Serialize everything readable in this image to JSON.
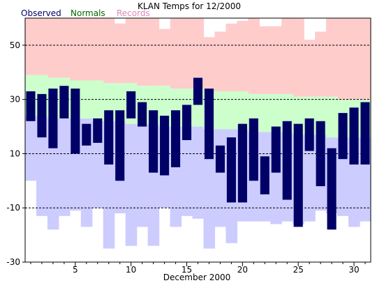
{
  "chart_data": {
    "type": "bar",
    "title": "KLAN Temps for 12/2000",
    "xlabel": "December 2000",
    "ylabel": "",
    "ylim": [
      -30,
      60
    ],
    "yticks": [
      -30,
      -10,
      10,
      30,
      50
    ],
    "xticks": [
      5,
      10,
      15,
      20,
      25,
      30
    ],
    "grid": "dashed horizontal at labeled y ticks",
    "legend": [
      {
        "name": "Observed",
        "color": "#000066"
      },
      {
        "name": "Normals",
        "color": "#006600"
      },
      {
        "name": "Records",
        "color": "#dd88bb"
      }
    ],
    "colors": {
      "observed": "#000066",
      "normals_fill": "#ccffcc",
      "records_high_fill": "#ffcccc",
      "records_low_fill": "#ccccff"
    },
    "days": [
      1,
      2,
      3,
      4,
      5,
      6,
      7,
      8,
      9,
      10,
      11,
      12,
      13,
      14,
      15,
      16,
      17,
      18,
      19,
      20,
      21,
      22,
      23,
      24,
      25,
      26,
      27,
      28,
      29,
      30,
      31
    ],
    "series": [
      {
        "name": "Observed",
        "high": [
          33,
          32,
          34,
          35,
          34,
          21,
          23,
          26,
          26,
          33,
          29,
          26,
          24,
          26,
          28,
          38,
          34,
          13,
          16,
          21,
          23,
          9,
          20,
          22,
          21,
          23,
          22,
          12,
          25,
          27,
          29
        ],
        "low": [
          22,
          16,
          12,
          23,
          10,
          13,
          14,
          6,
          0,
          23,
          20,
          3,
          2,
          5,
          15,
          28,
          8,
          3,
          -8,
          -8,
          0,
          -5,
          3,
          -7,
          -17,
          11,
          -2,
          -18,
          8,
          6,
          6
        ]
      },
      {
        "name": "Normals",
        "high": [
          39,
          39,
          38,
          38,
          37,
          37,
          37,
          36,
          36,
          36,
          35,
          35,
          35,
          34,
          34,
          34,
          33,
          33,
          33,
          33,
          32,
          32,
          32,
          32,
          31,
          31,
          31,
          31,
          30,
          30,
          30
        ],
        "low": [
          24,
          24,
          23,
          23,
          23,
          23,
          22,
          22,
          22,
          21,
          21,
          21,
          20,
          20,
          20,
          20,
          19,
          19,
          19,
          19,
          18,
          18,
          18,
          18,
          17,
          17,
          17,
          16,
          16,
          16,
          16
        ]
      },
      {
        "name": "Records",
        "high": [
          65,
          66,
          66,
          64,
          69,
          65,
          63,
          65,
          58,
          63,
          62,
          62,
          56,
          61,
          64,
          61,
          53,
          55,
          58,
          59,
          60,
          57,
          57,
          62,
          65,
          52,
          55,
          62,
          62,
          60,
          70
        ],
        "low": [
          0,
          -13,
          -18,
          -13,
          -11,
          -17,
          -10,
          -25,
          -12,
          -24,
          -17,
          -24,
          -10,
          -17,
          -13,
          -14,
          -25,
          -17,
          -23,
          -15,
          -15,
          -15,
          -16,
          -15,
          -16,
          -15,
          -11,
          -12,
          -13,
          -17,
          -15
        ]
      }
    ]
  }
}
